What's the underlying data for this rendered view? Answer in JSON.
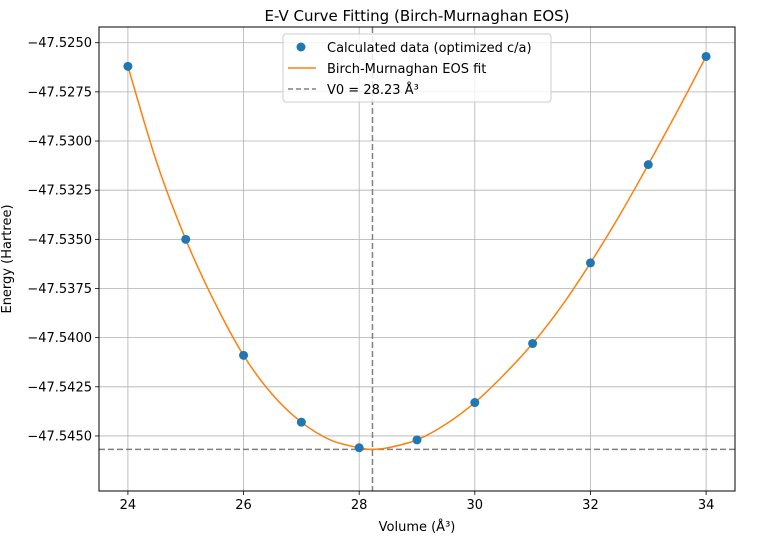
{
  "chart_data": {
    "type": "scatter",
    "title": "E-V Curve Fitting (Birch-Murnaghan EOS)",
    "xlabel": "Volume (Å³)",
    "ylabel": "Energy (Hartree)",
    "xlim": [
      23.5,
      34.5
    ],
    "ylim": [
      -47.5478,
      -47.5242
    ],
    "x_ticks": [
      24,
      26,
      28,
      30,
      32,
      34
    ],
    "x_tick_labels": [
      "24",
      "26",
      "28",
      "30",
      "32",
      "34"
    ],
    "y_ticks": [
      -47.525,
      -47.5275,
      -47.53,
      -47.5325,
      -47.535,
      -47.5375,
      -47.54,
      -47.5425,
      -47.545
    ],
    "y_tick_labels": [
      "−47.5250",
      "−47.5275",
      "−47.5300",
      "−47.5325",
      "−47.5350",
      "−47.5375",
      "−47.5400",
      "−47.5425",
      "−47.5450"
    ],
    "grid": true,
    "legend_position": "top-center",
    "series": [
      {
        "name": "Calculated data (optimized c/a)",
        "kind": "scatter",
        "color": "#1f77b4",
        "x": [
          24,
          25,
          26,
          27,
          28,
          29,
          30,
          31,
          32,
          33,
          34
        ],
        "y": [
          -47.5262,
          -47.535,
          -47.5409,
          -47.5443,
          -47.5456,
          -47.5452,
          -47.5433,
          -47.5403,
          -47.5362,
          -47.5312,
          -47.5257
        ]
      },
      {
        "name": "Birch-Murnaghan EOS fit",
        "kind": "line",
        "color": "#ff7f0e",
        "x": [
          24,
          24.5,
          25,
          25.5,
          26,
          26.5,
          27,
          27.5,
          28,
          28.23,
          28.5,
          29,
          29.5,
          30,
          30.5,
          31,
          31.5,
          32,
          32.5,
          33,
          33.5,
          34
        ],
        "y": [
          -47.5262,
          -47.5311,
          -47.535,
          -47.5382,
          -47.5409,
          -47.5429,
          -47.5443,
          -47.5452,
          -47.5456,
          -47.54568,
          -47.5456,
          -47.5452,
          -47.5444,
          -47.5433,
          -47.5419,
          -47.5403,
          -47.5384,
          -47.5362,
          -47.5338,
          -47.5312,
          -47.5285,
          -47.5257
        ]
      },
      {
        "name": "V0 = 28.23 Å³",
        "kind": "reference",
        "color": "#808080",
        "v0": 28.23,
        "e0": -47.54568
      }
    ]
  }
}
